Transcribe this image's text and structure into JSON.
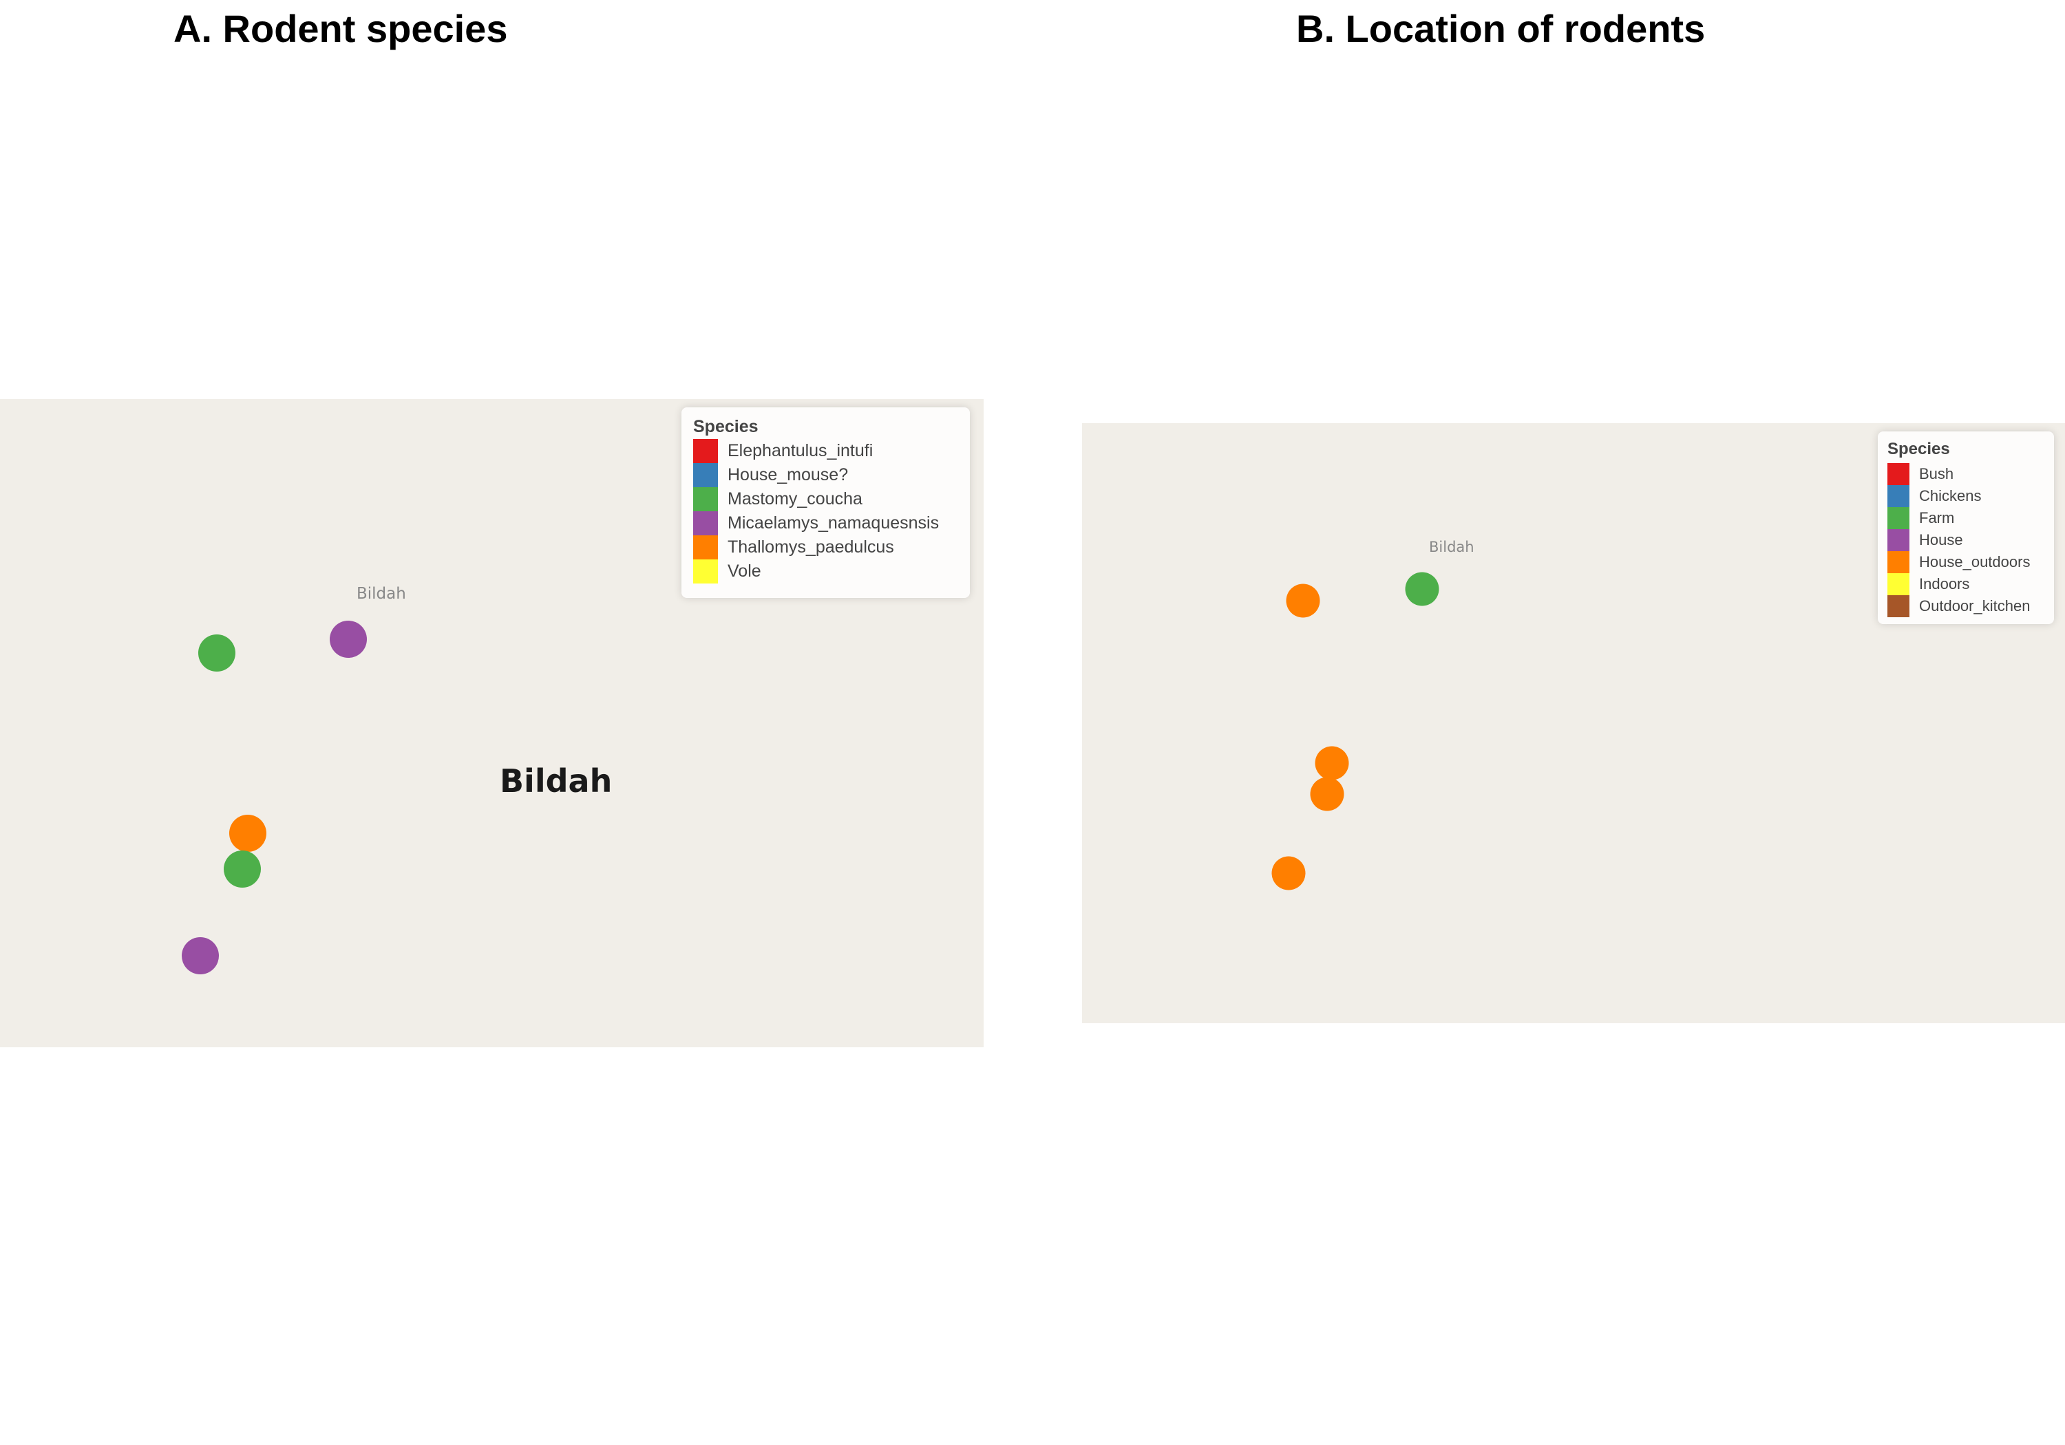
{
  "panels": [
    {
      "title": "A. Rodent species",
      "place_label_small": "Bildah",
      "place_label_large": "Bildah",
      "legend": {
        "title": "Species",
        "entries": [
          {
            "label": "Elephantulus_intufi",
            "color": "#e41a1c"
          },
          {
            "label": "House_mouse?",
            "color": "#377eb8"
          },
          {
            "label": "Mastomy_coucha",
            "color": "#4daf4a"
          },
          {
            "label": "Micaelamys_namaquesnsis",
            "color": "#984ea3"
          },
          {
            "label": "Thallomys_paedulcus",
            "color": "#ff7f00"
          },
          {
            "label": "Vole",
            "color": "#ffff33"
          }
        ]
      },
      "points": [
        {
          "category": "Micaelamys_namaquesnsis",
          "color": "#984ea3"
        },
        {
          "category": "Mastomy_coucha",
          "color": "#4daf4a"
        },
        {
          "category": "Thallomys_paedulcus",
          "color": "#ff7f00"
        },
        {
          "category": "Mastomy_coucha",
          "color": "#4daf4a"
        },
        {
          "category": "Micaelamys_namaquesnsis",
          "color": "#984ea3"
        }
      ]
    },
    {
      "title": "B. Location of rodents",
      "place_label_small": "Bildah",
      "legend": {
        "title": "Species",
        "entries": [
          {
            "label": "Bush",
            "color": "#e41a1c"
          },
          {
            "label": "Chickens",
            "color": "#377eb8"
          },
          {
            "label": "Farm",
            "color": "#4daf4a"
          },
          {
            "label": "House",
            "color": "#984ea3"
          },
          {
            "label": "House_outdoors",
            "color": "#ff7f00"
          },
          {
            "label": "Indoors",
            "color": "#ffff33"
          },
          {
            "label": "Outdoor_kitchen",
            "color": "#a65628"
          }
        ]
      },
      "points": [
        {
          "category": "Farm",
          "color": "#4daf4a"
        },
        {
          "category": "House_outdoors",
          "color": "#ff7f00"
        },
        {
          "category": "House_outdoors",
          "color": "#ff7f00"
        },
        {
          "category": "House_outdoors",
          "color": "#ff7f00"
        },
        {
          "category": "House_outdoors",
          "color": "#ff7f00"
        }
      ]
    }
  ]
}
